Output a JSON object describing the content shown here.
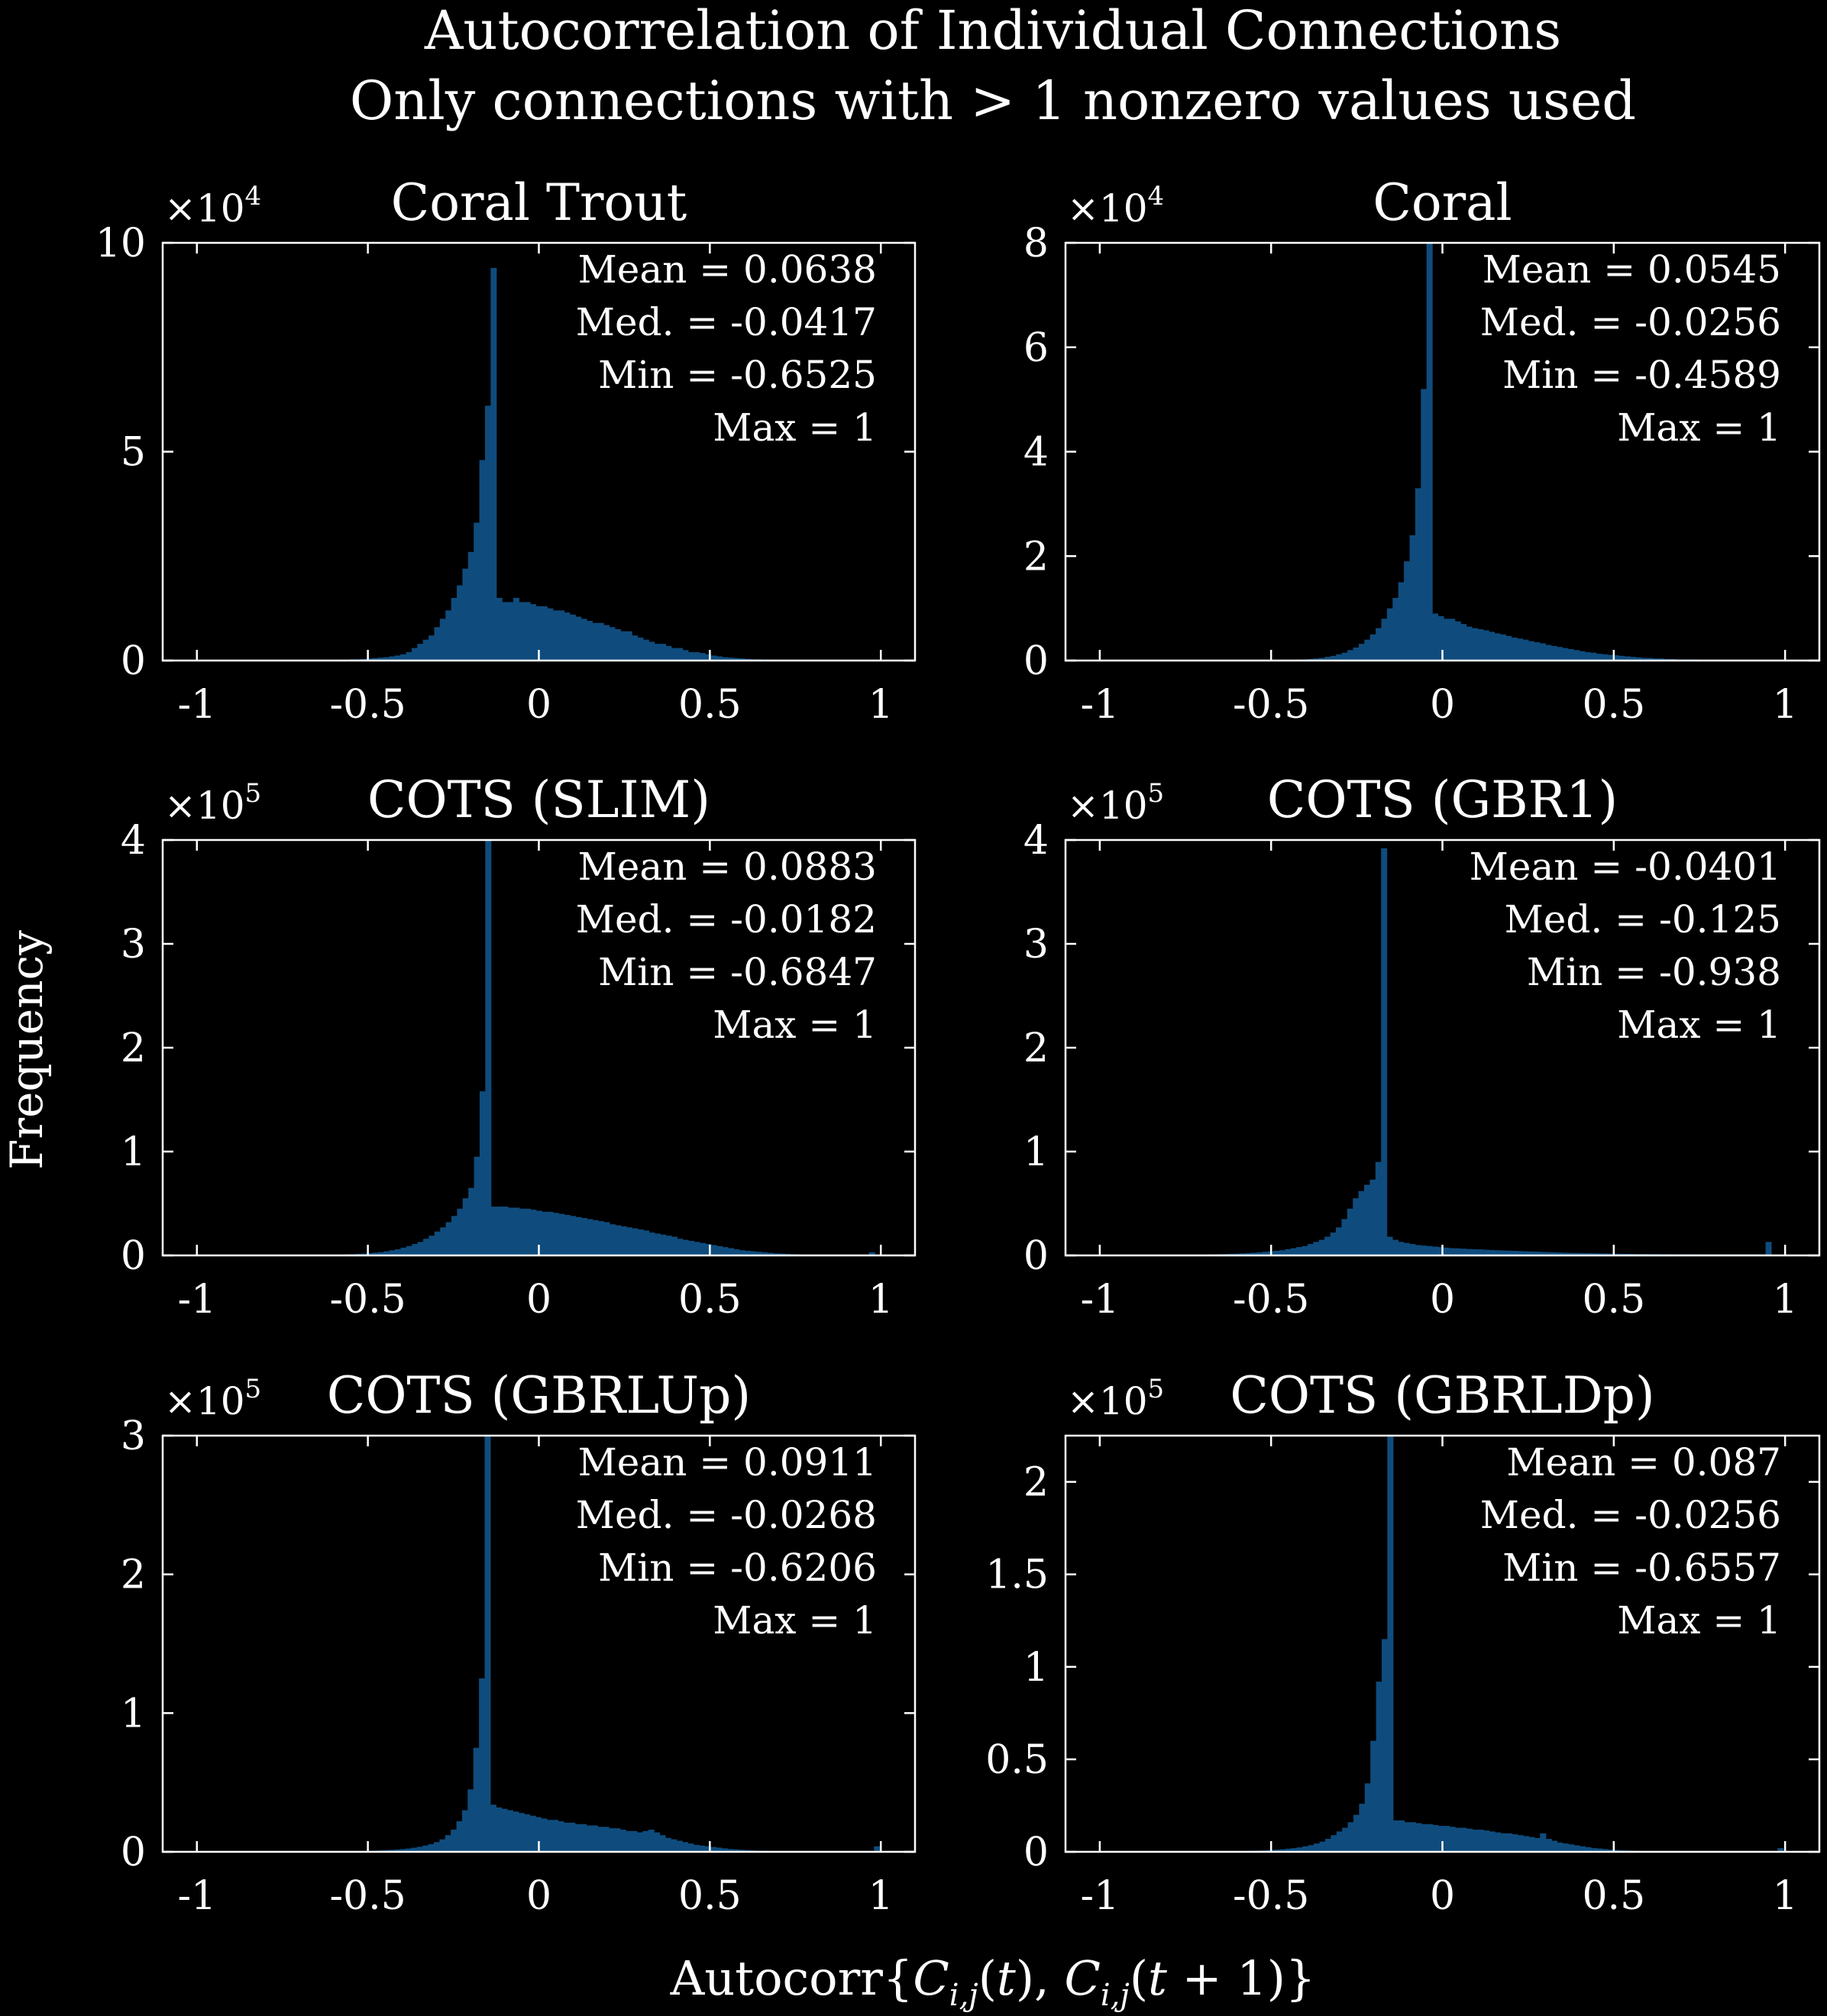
{
  "figure": {
    "title": "Autocorrelation of Individual Connections",
    "subtitle": "Only connections with > 1 nonzero values used",
    "ylabel": "Frequency",
    "xlabel": "Autocorr{C_{i,j}(t), C_{i,j}(t + 1)}",
    "background": "#000000",
    "bar_color": "#0f4c7d"
  },
  "chart_data": [
    {
      "type": "bar",
      "title": "Coral Trout",
      "exponent": "4",
      "ylim": [
        0,
        10
      ],
      "yticks": [
        0,
        5,
        10
      ],
      "xlim": [
        -1.1,
        1.1
      ],
      "xticks": [
        -1,
        -0.5,
        0,
        0.5,
        1
      ],
      "stats": [
        "Mean = 0.0638",
        "Med. = -0.0417",
        "Min = -0.6525",
        "Max = 1"
      ],
      "bin_start": -0.6525,
      "bin_width": 0.0165,
      "values": [
        0.01,
        0.01,
        0.01,
        0.01,
        0.02,
        0.02,
        0.03,
        0.03,
        0.04,
        0.05,
        0.06,
        0.07,
        0.08,
        0.1,
        0.12,
        0.15,
        0.2,
        0.3,
        0.4,
        0.5,
        0.6,
        0.8,
        1.0,
        1.2,
        1.5,
        1.8,
        2.2,
        2.6,
        3.3,
        4.8,
        6.1,
        9.4,
        1.5,
        1.4,
        1.4,
        1.5,
        1.4,
        1.4,
        1.35,
        1.3,
        1.3,
        1.25,
        1.2,
        1.2,
        1.15,
        1.1,
        1.05,
        1.0,
        0.95,
        0.9,
        0.9,
        0.85,
        0.8,
        0.75,
        0.7,
        0.7,
        0.6,
        0.55,
        0.5,
        0.45,
        0.4,
        0.4,
        0.35,
        0.3,
        0.3,
        0.25,
        0.2,
        0.2,
        0.18,
        0.15,
        0.12,
        0.1,
        0.08,
        0.07,
        0.06,
        0.05,
        0.04,
        0.03,
        0.03,
        0.02,
        0.02,
        0.01,
        0.01,
        0.01,
        0.01,
        0.01,
        0.01,
        0.01,
        0.01,
        0.01,
        0.01,
        0.01,
        0.01,
        0.01,
        0.01,
        0.01,
        0.01,
        0.01,
        0.01,
        0.02
      ]
    },
    {
      "type": "bar",
      "title": "Coral",
      "exponent": "4",
      "ylim": [
        0,
        8
      ],
      "yticks": [
        0,
        2,
        4,
        6,
        8
      ],
      "xlim": [
        -1.1,
        1.1
      ],
      "xticks": [
        -1,
        -0.5,
        0,
        0.5,
        1
      ],
      "stats": [
        "Mean = 0.0545",
        "Med. = -0.0256",
        "Min = -0.4589",
        "Max = 1"
      ],
      "bin_start": -0.4589,
      "bin_width": 0.0165,
      "values": [
        0.01,
        0.01,
        0.02,
        0.02,
        0.03,
        0.04,
        0.05,
        0.07,
        0.09,
        0.12,
        0.15,
        0.2,
        0.25,
        0.32,
        0.4,
        0.5,
        0.62,
        0.8,
        1.0,
        1.2,
        1.5,
        1.9,
        2.4,
        3.3,
        5.2,
        8.0,
        0.9,
        0.85,
        0.8,
        0.8,
        0.75,
        0.7,
        0.65,
        0.62,
        0.6,
        0.58,
        0.55,
        0.52,
        0.5,
        0.47,
        0.44,
        0.42,
        0.4,
        0.37,
        0.35,
        0.33,
        0.3,
        0.28,
        0.26,
        0.24,
        0.22,
        0.2,
        0.18,
        0.16,
        0.15,
        0.13,
        0.12,
        0.11,
        0.1,
        0.09,
        0.08,
        0.07,
        0.06,
        0.05,
        0.05,
        0.04,
        0.04,
        0.03,
        0.03,
        0.02,
        0.02,
        0.02,
        0.02,
        0.01,
        0.01,
        0.01,
        0.01,
        0.01,
        0.01,
        0.01,
        0.01,
        0.01,
        0.01,
        0.01,
        0.01,
        0.01,
        0.01,
        0.01,
        0.01
      ]
    },
    {
      "type": "bar",
      "title": "COTS (SLIM)",
      "exponent": "5",
      "ylim": [
        0,
        4
      ],
      "yticks": [
        0,
        1,
        2,
        3,
        4
      ],
      "xlim": [
        -1.1,
        1.1
      ],
      "xticks": [
        -1,
        -0.5,
        0,
        0.5,
        1
      ],
      "stats": [
        "Mean = 0.0883",
        "Med. = -0.0182",
        "Min = -0.6847",
        "Max = 1"
      ],
      "bin_start": -0.6847,
      "bin_width": 0.0165,
      "values": [
        0.002,
        0.002,
        0.003,
        0.004,
        0.005,
        0.006,
        0.008,
        0.01,
        0.012,
        0.015,
        0.018,
        0.022,
        0.027,
        0.032,
        0.04,
        0.05,
        0.06,
        0.075,
        0.09,
        0.11,
        0.13,
        0.16,
        0.19,
        0.23,
        0.27,
        0.32,
        0.38,
        0.45,
        0.55,
        0.65,
        0.95,
        1.58,
        4.2,
        0.47,
        0.47,
        0.47,
        0.46,
        0.46,
        0.45,
        0.45,
        0.44,
        0.43,
        0.42,
        0.42,
        0.41,
        0.4,
        0.39,
        0.38,
        0.37,
        0.36,
        0.35,
        0.34,
        0.33,
        0.32,
        0.3,
        0.29,
        0.28,
        0.27,
        0.26,
        0.25,
        0.24,
        0.22,
        0.21,
        0.2,
        0.19,
        0.18,
        0.16,
        0.15,
        0.14,
        0.13,
        0.12,
        0.11,
        0.1,
        0.09,
        0.08,
        0.07,
        0.06,
        0.05,
        0.045,
        0.04,
        0.035,
        0.03,
        0.025,
        0.02,
        0.018,
        0.015,
        0.012,
        0.01,
        0.008,
        0.007,
        0.006,
        0.005,
        0.004,
        0.004,
        0.003,
        0.003,
        0.003,
        0.002,
        0.002,
        0.002,
        0.03
      ]
    },
    {
      "type": "bar",
      "title": "COTS (GBR1)",
      "exponent": "5",
      "ylim": [
        0,
        4
      ],
      "yticks": [
        0,
        1,
        2,
        3,
        4
      ],
      "xlim": [
        -1.1,
        1.1
      ],
      "xticks": [
        -1,
        -0.5,
        0,
        0.5,
        1
      ],
      "stats": [
        "Mean = -0.0401",
        "Med. = -0.125",
        "Min = -0.938",
        "Max = 1"
      ],
      "bin_start": -0.938,
      "bin_width": 0.0165,
      "values": [
        0.002,
        0.002,
        0.002,
        0.002,
        0.002,
        0.003,
        0.003,
        0.003,
        0.004,
        0.004,
        0.005,
        0.005,
        0.006,
        0.007,
        0.008,
        0.009,
        0.01,
        0.012,
        0.014,
        0.016,
        0.018,
        0.02,
        0.023,
        0.026,
        0.03,
        0.035,
        0.04,
        0.045,
        0.05,
        0.06,
        0.07,
        0.08,
        0.09,
        0.11,
        0.13,
        0.15,
        0.18,
        0.22,
        0.27,
        0.35,
        0.45,
        0.55,
        0.62,
        0.68,
        0.73,
        0.9,
        3.92,
        0.18,
        0.15,
        0.13,
        0.12,
        0.11,
        0.1,
        0.095,
        0.09,
        0.085,
        0.08,
        0.075,
        0.07,
        0.068,
        0.065,
        0.062,
        0.06,
        0.058,
        0.055,
        0.052,
        0.05,
        0.048,
        0.046,
        0.044,
        0.042,
        0.04,
        0.038,
        0.036,
        0.034,
        0.032,
        0.03,
        0.028,
        0.026,
        0.025,
        0.024,
        0.023,
        0.022,
        0.021,
        0.02,
        0.019,
        0.018,
        0.017,
        0.016,
        0.015,
        0.015,
        0.014,
        0.014,
        0.013,
        0.013,
        0.012,
        0.012,
        0.012,
        0.011,
        0.011,
        0.011,
        0.011,
        0.01,
        0.01,
        0.01,
        0.01,
        0.01,
        0.01,
        0.01,
        0.01,
        0.01,
        0.01,
        0.01,
        0.01,
        0.13
      ]
    },
    {
      "type": "bar",
      "title": "COTS (GBRLUp)",
      "exponent": "5",
      "ylim": [
        0,
        3
      ],
      "yticks": [
        0,
        1,
        2,
        3
      ],
      "xlim": [
        -1.1,
        1.1
      ],
      "xticks": [
        -1,
        -0.5,
        0,
        0.5,
        1
      ],
      "stats": [
        "Mean = 0.0911",
        "Med. = -0.0268",
        "Min = -0.6206",
        "Max = 1"
      ],
      "bin_start": -0.6206,
      "bin_width": 0.0165,
      "values": [
        0.002,
        0.002,
        0.003,
        0.003,
        0.004,
        0.005,
        0.006,
        0.007,
        0.008,
        0.01,
        0.012,
        0.014,
        0.017,
        0.02,
        0.024,
        0.03,
        0.036,
        0.045,
        0.055,
        0.07,
        0.09,
        0.12,
        0.16,
        0.22,
        0.3,
        0.45,
        0.75,
        1.25,
        3.0,
        0.34,
        0.32,
        0.31,
        0.3,
        0.29,
        0.28,
        0.27,
        0.26,
        0.25,
        0.24,
        0.23,
        0.23,
        0.22,
        0.21,
        0.21,
        0.2,
        0.2,
        0.19,
        0.19,
        0.18,
        0.18,
        0.17,
        0.17,
        0.16,
        0.15,
        0.15,
        0.14,
        0.15,
        0.16,
        0.14,
        0.12,
        0.1,
        0.09,
        0.08,
        0.07,
        0.06,
        0.05,
        0.045,
        0.04,
        0.035,
        0.03,
        0.025,
        0.02,
        0.018,
        0.015,
        0.012,
        0.01,
        0.008,
        0.007,
        0.006,
        0.005,
        0.004,
        0.004,
        0.003,
        0.003,
        0.003,
        0.002,
        0.002,
        0.002,
        0.002,
        0.002,
        0.002,
        0.002,
        0.002,
        0.002,
        0.002,
        0.002,
        0.002,
        0.04
      ]
    },
    {
      "type": "bar",
      "title": "COTS (GBRLDp)",
      "exponent": "5",
      "ylim": [
        0,
        2.25
      ],
      "yticks": [
        0,
        0.5,
        1,
        1.5,
        2
      ],
      "xlim": [
        -1.1,
        1.1
      ],
      "xticks": [
        -1,
        -0.5,
        0,
        0.5,
        1
      ],
      "stats": [
        "Mean = 0.087",
        "Med. = -0.0256",
        "Min = -0.6557",
        "Max = 1"
      ],
      "bin_start": -0.6557,
      "bin_width": 0.0165,
      "values": [
        0.002,
        0.002,
        0.003,
        0.003,
        0.004,
        0.005,
        0.006,
        0.007,
        0.008,
        0.01,
        0.012,
        0.014,
        0.017,
        0.02,
        0.024,
        0.03,
        0.036,
        0.045,
        0.055,
        0.07,
        0.09,
        0.11,
        0.13,
        0.16,
        0.2,
        0.26,
        0.37,
        0.6,
        0.92,
        1.15,
        2.25,
        0.17,
        0.17,
        0.16,
        0.16,
        0.155,
        0.15,
        0.15,
        0.145,
        0.14,
        0.14,
        0.135,
        0.13,
        0.13,
        0.125,
        0.12,
        0.12,
        0.115,
        0.11,
        0.105,
        0.1,
        0.1,
        0.095,
        0.09,
        0.085,
        0.08,
        0.075,
        0.1,
        0.07,
        0.06,
        0.05,
        0.045,
        0.04,
        0.035,
        0.03,
        0.025,
        0.02,
        0.018,
        0.015,
        0.012,
        0.01,
        0.008,
        0.007,
        0.006,
        0.005,
        0.004,
        0.004,
        0.003,
        0.003,
        0.003,
        0.002,
        0.002,
        0.002,
        0.002,
        0.002,
        0.002,
        0.002,
        0.002,
        0.002,
        0.002,
        0.002,
        0.002,
        0.002,
        0.002,
        0.002,
        0.002,
        0.002,
        0.002,
        0.002,
        0.02
      ]
    }
  ]
}
